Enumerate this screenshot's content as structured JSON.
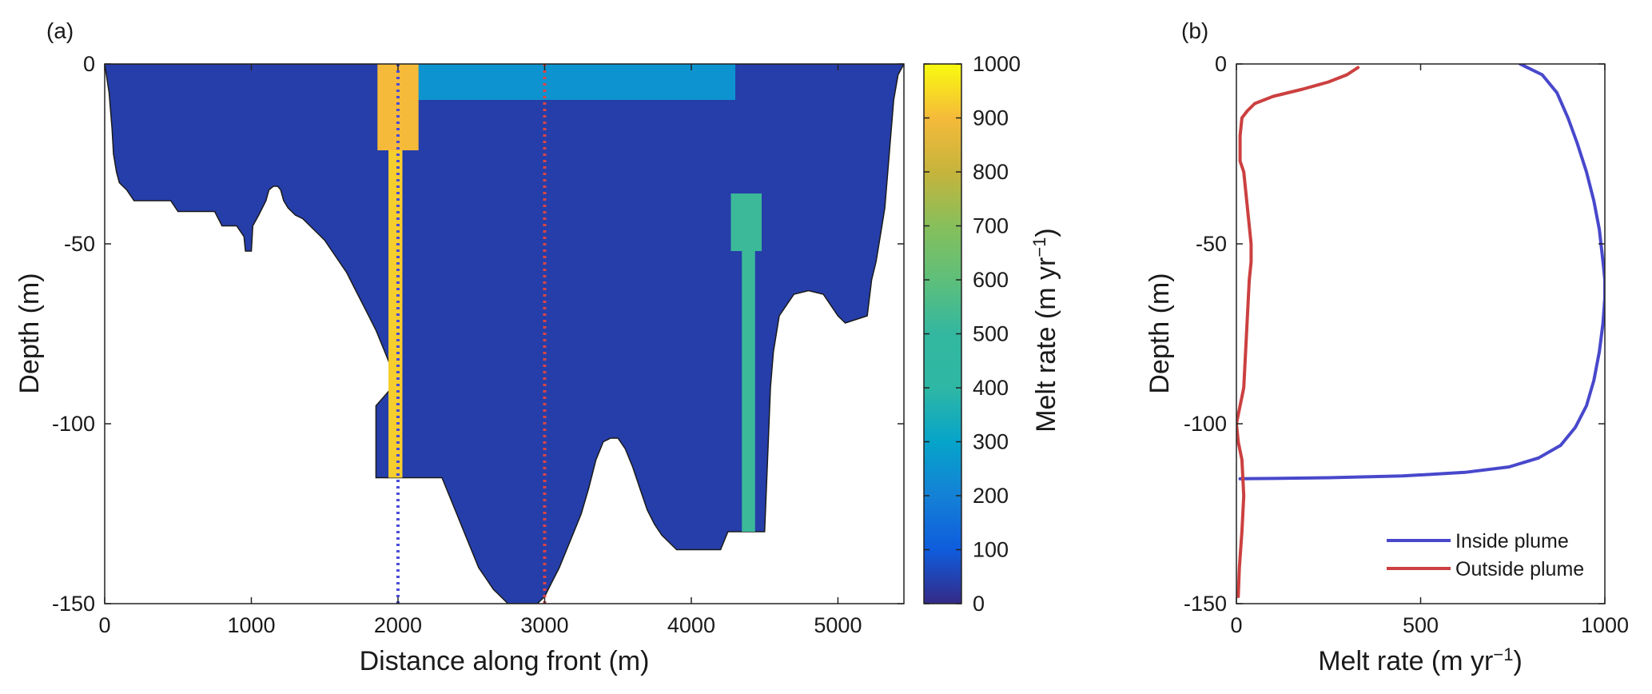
{
  "chart_data": [
    {
      "panel_label": "(a)",
      "type": "heatmap",
      "xlabel": "Distance along front (m)",
      "ylabel": "Depth (m)",
      "xlim": [
        0,
        5450
      ],
      "ylim": [
        -150,
        0
      ],
      "xticks": [
        0,
        1000,
        2000,
        3000,
        4000,
        5000
      ],
      "yticks": [
        0,
        -50,
        -100,
        -150
      ],
      "colorbar": {
        "label_main": "Melt rate (m yr",
        "label_sup": "−1",
        "label_close": ")",
        "range": [
          0,
          1000
        ],
        "ticks": [
          0,
          100,
          200,
          300,
          400,
          500,
          600,
          700,
          800,
          900,
          1000
        ],
        "colormap": "parula"
      },
      "background_melt": 40,
      "cross_section_outline": [
        [
          0,
          0
        ],
        [
          30,
          -8
        ],
        [
          50,
          -18
        ],
        [
          60,
          -25
        ],
        [
          80,
          -30
        ],
        [
          100,
          -33
        ],
        [
          150,
          -35
        ],
        [
          200,
          -38
        ],
        [
          450,
          -38
        ],
        [
          500,
          -41
        ],
        [
          750,
          -41
        ],
        [
          800,
          -45
        ],
        [
          900,
          -45
        ],
        [
          950,
          -48
        ],
        [
          960,
          -52
        ],
        [
          1000,
          -52
        ],
        [
          1010,
          -45
        ],
        [
          1050,
          -42
        ],
        [
          1100,
          -38
        ],
        [
          1120,
          -35
        ],
        [
          1150,
          -34
        ],
        [
          1180,
          -34
        ],
        [
          1200,
          -35
        ],
        [
          1220,
          -38
        ],
        [
          1250,
          -40
        ],
        [
          1300,
          -42
        ],
        [
          1350,
          -43
        ],
        [
          1400,
          -45
        ],
        [
          1450,
          -47
        ],
        [
          1500,
          -49
        ],
        [
          1550,
          -52
        ],
        [
          1600,
          -55
        ],
        [
          1650,
          -58
        ],
        [
          1700,
          -62
        ],
        [
          1750,
          -66
        ],
        [
          1800,
          -70
        ],
        [
          1850,
          -74
        ],
        [
          1900,
          -79
        ],
        [
          1950,
          -84
        ],
        [
          2000,
          -88
        ],
        [
          1850,
          -95
        ],
        [
          1850,
          -115
        ],
        [
          2300,
          -115
        ],
        [
          2350,
          -120
        ],
        [
          2400,
          -125
        ],
        [
          2450,
          -130
        ],
        [
          2500,
          -135
        ],
        [
          2550,
          -140
        ],
        [
          2600,
          -143
        ],
        [
          2650,
          -146
        ],
        [
          2700,
          -148
        ],
        [
          2750,
          -150
        ],
        [
          2950,
          -150
        ],
        [
          3000,
          -148
        ],
        [
          3050,
          -144
        ],
        [
          3100,
          -140
        ],
        [
          3150,
          -135
        ],
        [
          3200,
          -130
        ],
        [
          3250,
          -125
        ],
        [
          3300,
          -118
        ],
        [
          3350,
          -110
        ],
        [
          3400,
          -105
        ],
        [
          3450,
          -104
        ],
        [
          3500,
          -104
        ],
        [
          3550,
          -107
        ],
        [
          3600,
          -112
        ],
        [
          3650,
          -118
        ],
        [
          3700,
          -124
        ],
        [
          3750,
          -128
        ],
        [
          3800,
          -131
        ],
        [
          3850,
          -133
        ],
        [
          3900,
          -135
        ],
        [
          4200,
          -135
        ],
        [
          4250,
          -130
        ],
        [
          4500,
          -130
        ],
        [
          4520,
          -110
        ],
        [
          4540,
          -90
        ],
        [
          4560,
          -80
        ],
        [
          4600,
          -70
        ],
        [
          4700,
          -64
        ],
        [
          4800,
          -63
        ],
        [
          4900,
          -64
        ],
        [
          5000,
          -70
        ],
        [
          5050,
          -72
        ],
        [
          5200,
          -70
        ],
        [
          5230,
          -60
        ],
        [
          5260,
          -55
        ],
        [
          5280,
          -50
        ],
        [
          5300,
          -45
        ],
        [
          5320,
          -40
        ],
        [
          5340,
          -30
        ],
        [
          5360,
          -20
        ],
        [
          5380,
          -10
        ],
        [
          5410,
          -3
        ],
        [
          5450,
          0
        ]
      ],
      "plume_upper": {
        "x": [
          1860,
          2140
        ],
        "y": [
          0,
          -24
        ],
        "value": 900
      },
      "plume_column": {
        "x": [
          1935,
          2030
        ],
        "y": [
          -24,
          -115
        ],
        "value": 930
      },
      "plume_right_upper": {
        "x": [
          4270,
          4480
        ],
        "y": [
          -36,
          -52
        ],
        "value": 520
      },
      "plume_right_column": {
        "x": [
          4345,
          4435
        ],
        "y": [
          -52,
          -130
        ],
        "value": 520
      },
      "surface_warm_band": {
        "x": [
          1900,
          4300
        ],
        "y": [
          0,
          -10
        ],
        "value": 250
      },
      "vertical_profiles": [
        {
          "x": 2000,
          "color": "#4b4cd6",
          "style": "dotted"
        },
        {
          "x": 3000,
          "color": "#d94545",
          "style": "dotted"
        }
      ]
    },
    {
      "panel_label": "(b)",
      "type": "line",
      "xlabel_main": "Melt rate (m yr",
      "xlabel_sup": "−1",
      "xlabel_close": ")",
      "ylabel": "Depth (m)",
      "xlim": [
        0,
        1000
      ],
      "ylim": [
        -150,
        0
      ],
      "xticks": [
        0,
        500,
        1000
      ],
      "yticks": [
        0,
        -50,
        -100,
        -150
      ],
      "legend_position": "bottom-right",
      "series": [
        {
          "name": "Inside plume",
          "color": "#4848cc",
          "x": [
            770,
            830,
            870,
            900,
            925,
            950,
            970,
            985,
            995,
            1000,
            1000,
            995,
            985,
            970,
            950,
            920,
            880,
            820,
            740,
            620,
            450,
            250,
            100,
            10
          ],
          "y": [
            0,
            -3,
            -8,
            -15,
            -22,
            -30,
            -38,
            -46,
            -55,
            -60,
            -65,
            -72,
            -80,
            -88,
            -95,
            -101,
            -106,
            -109.5,
            -112,
            -113.5,
            -114.5,
            -115,
            -115.2,
            -115.3
          ]
        },
        {
          "name": "Outside plume",
          "color": "#cc4040",
          "x": [
            330,
            300,
            250,
            180,
            100,
            50,
            30,
            15,
            10,
            10,
            20,
            25,
            30,
            35,
            40,
            40,
            35,
            30,
            25,
            20,
            10,
            0,
            5,
            15,
            20,
            15,
            8,
            5
          ],
          "y": [
            -1,
            -3,
            -5,
            -7,
            -9,
            -11,
            -13,
            -15,
            -20,
            -27,
            -30,
            -35,
            -40,
            -45,
            -50,
            -55,
            -60,
            -70,
            -80,
            -90,
            -95,
            -100,
            -105,
            -110,
            -120,
            -130,
            -140,
            -148
          ]
        }
      ]
    }
  ]
}
